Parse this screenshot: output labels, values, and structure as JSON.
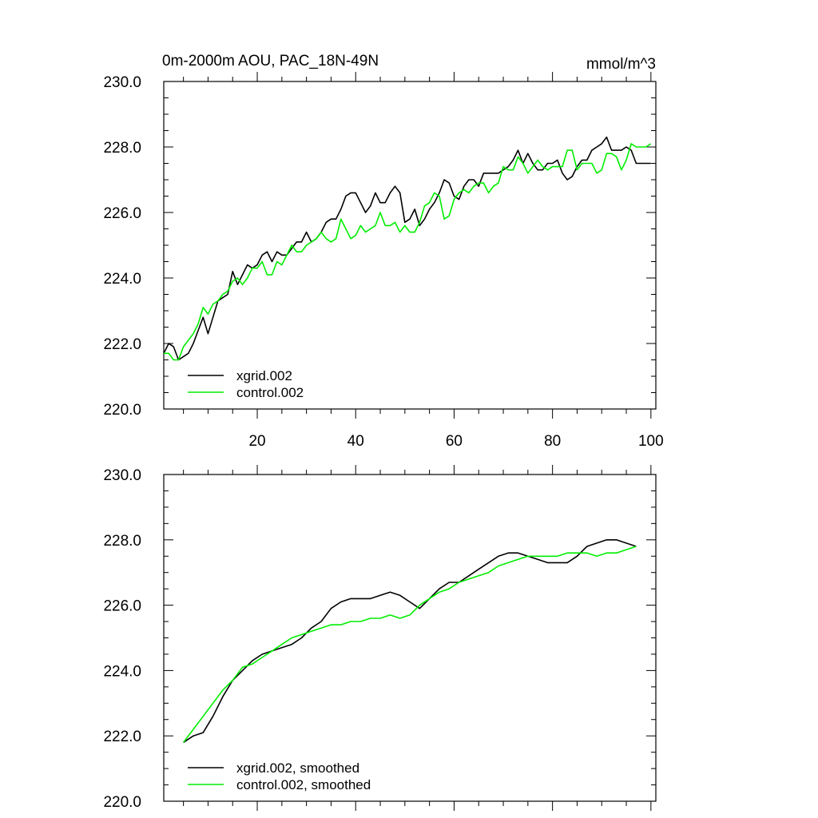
{
  "chart_data": [
    {
      "type": "line",
      "title": "0m-2000m AOU, PAC_18N-49N",
      "units": "mmol/m^3",
      "xlim": [
        1,
        101
      ],
      "ylim": [
        220,
        230
      ],
      "xticks": [
        20,
        40,
        60,
        80,
        100
      ],
      "xtick_labels": [
        "20",
        "40",
        "60",
        "80",
        "100"
      ],
      "yticks": [
        220,
        222,
        224,
        226,
        228,
        230
      ],
      "ytick_labels": [
        "220.0",
        "222.0",
        "224.0",
        "226.0",
        "228.0",
        "230.0"
      ],
      "legend_position": "bottom-left",
      "series": [
        {
          "name": "xgrid.002",
          "color": "#000000",
          "x": [
            1,
            2,
            3,
            4,
            5,
            6,
            7,
            8,
            9,
            10,
            11,
            12,
            13,
            14,
            15,
            16,
            17,
            18,
            19,
            20,
            21,
            22,
            23,
            24,
            25,
            26,
            27,
            28,
            29,
            30,
            31,
            32,
            33,
            34,
            35,
            36,
            37,
            38,
            39,
            40,
            41,
            42,
            43,
            44,
            45,
            46,
            47,
            48,
            49,
            50,
            51,
            52,
            53,
            54,
            55,
            56,
            57,
            58,
            59,
            60,
            61,
            62,
            63,
            64,
            65,
            66,
            67,
            68,
            69,
            70,
            71,
            72,
            73,
            74,
            75,
            76,
            77,
            78,
            79,
            80,
            81,
            82,
            83,
            84,
            85,
            86,
            87,
            88,
            89,
            90,
            91,
            92,
            93,
            94,
            95,
            96,
            97,
            98,
            99,
            100
          ],
          "values": [
            221.7,
            222.0,
            221.9,
            221.5,
            221.6,
            221.7,
            222.0,
            222.4,
            222.8,
            222.3,
            222.8,
            223.3,
            223.4,
            223.5,
            224.2,
            223.8,
            224.1,
            224.4,
            224.3,
            224.4,
            224.7,
            224.8,
            224.5,
            224.8,
            224.7,
            224.7,
            224.9,
            225.1,
            225.1,
            225.4,
            225.1,
            225.2,
            225.4,
            225.7,
            225.8,
            225.8,
            226.1,
            226.5,
            226.6,
            226.6,
            226.3,
            226.0,
            226.2,
            226.6,
            226.3,
            226.3,
            226.6,
            226.8,
            226.6,
            225.7,
            225.8,
            226.1,
            225.6,
            225.8,
            226.1,
            226.3,
            226.6,
            227.0,
            226.9,
            226.5,
            226.4,
            226.8,
            227.0,
            227.0,
            226.8,
            227.2,
            227.2,
            227.2,
            227.2,
            227.3,
            227.4,
            227.6,
            227.9,
            227.5,
            227.8,
            227.5,
            227.3,
            227.3,
            227.5,
            227.5,
            227.6,
            227.2,
            227.0,
            227.1,
            227.4,
            227.6,
            227.6,
            227.9,
            228.0,
            228.1,
            228.3,
            227.9,
            227.9,
            227.9,
            228.0,
            227.9,
            227.5,
            227.5,
            227.5,
            227.5
          ]
        },
        {
          "name": "control.002",
          "color": "#00ee00",
          "x": [
            1,
            2,
            3,
            4,
            5,
            6,
            7,
            8,
            9,
            10,
            11,
            12,
            13,
            14,
            15,
            16,
            17,
            18,
            19,
            20,
            21,
            22,
            23,
            24,
            25,
            26,
            27,
            28,
            29,
            30,
            31,
            32,
            33,
            34,
            35,
            36,
            37,
            38,
            39,
            40,
            41,
            42,
            43,
            44,
            45,
            46,
            47,
            48,
            49,
            50,
            51,
            52,
            53,
            54,
            55,
            56,
            57,
            58,
            59,
            60,
            61,
            62,
            63,
            64,
            65,
            66,
            67,
            68,
            69,
            70,
            71,
            72,
            73,
            74,
            75,
            76,
            77,
            78,
            79,
            80,
            81,
            82,
            83,
            84,
            85,
            86,
            87,
            88,
            89,
            90,
            91,
            92,
            93,
            94,
            95,
            96,
            97,
            98,
            99,
            100
          ],
          "values": [
            221.7,
            221.7,
            221.5,
            221.5,
            221.9,
            222.1,
            222.3,
            222.6,
            223.1,
            222.9,
            223.2,
            223.3,
            223.5,
            223.6,
            223.9,
            224.0,
            223.8,
            224.0,
            224.3,
            224.3,
            224.5,
            224.1,
            224.1,
            224.5,
            224.4,
            224.7,
            225.0,
            224.8,
            224.8,
            225.0,
            225.1,
            225.2,
            225.4,
            225.2,
            225.1,
            225.2,
            225.8,
            225.5,
            225.2,
            225.3,
            225.6,
            225.4,
            225.5,
            225.6,
            226.0,
            225.6,
            225.6,
            225.7,
            225.4,
            225.6,
            225.4,
            225.4,
            225.7,
            226.2,
            226.3,
            226.6,
            226.5,
            225.8,
            225.9,
            226.4,
            226.6,
            226.7,
            226.6,
            226.8,
            226.9,
            226.9,
            226.6,
            226.8,
            226.9,
            227.4,
            227.3,
            227.3,
            227.7,
            227.5,
            227.2,
            227.4,
            227.6,
            227.4,
            227.3,
            227.4,
            227.4,
            227.4,
            227.9,
            227.9,
            227.3,
            227.5,
            227.5,
            227.5,
            227.2,
            227.3,
            227.8,
            227.8,
            227.7,
            227.3,
            227.6,
            228.1,
            228.0,
            228.0,
            228.0,
            228.1
          ]
        }
      ],
      "legend": [
        "xgrid.002",
        "control.002"
      ]
    },
    {
      "type": "line",
      "title": "",
      "xlim": [
        1,
        101
      ],
      "ylim": [
        220,
        230
      ],
      "xticks": [
        20,
        40,
        60,
        80,
        100
      ],
      "xtick_labels": [],
      "yticks": [
        220,
        222,
        224,
        226,
        228,
        230
      ],
      "ytick_labels": [
        "220.0",
        "222.0",
        "224.0",
        "226.0",
        "228.0",
        "230.0"
      ],
      "legend_position": "bottom-left",
      "series": [
        {
          "name": "xgrid.002, smoothed",
          "color": "#000000",
          "x": [
            5,
            7,
            9,
            11,
            13,
            15,
            17,
            19,
            21,
            23,
            25,
            27,
            29,
            31,
            33,
            35,
            37,
            39,
            41,
            43,
            45,
            47,
            49,
            51,
            53,
            55,
            57,
            59,
            61,
            63,
            65,
            67,
            69,
            71,
            73,
            75,
            77,
            79,
            81,
            83,
            85,
            87,
            89,
            91,
            93,
            95,
            97
          ],
          "values": [
            221.8,
            222.0,
            222.1,
            222.6,
            223.2,
            223.7,
            224.0,
            224.3,
            224.5,
            224.6,
            224.7,
            224.8,
            225.0,
            225.3,
            225.5,
            225.9,
            226.1,
            226.2,
            226.2,
            226.2,
            226.3,
            226.4,
            226.3,
            226.1,
            225.9,
            226.2,
            226.5,
            226.7,
            226.7,
            226.9,
            227.1,
            227.3,
            227.5,
            227.6,
            227.6,
            227.5,
            227.4,
            227.3,
            227.3,
            227.3,
            227.5,
            227.8,
            227.9,
            228.0,
            228.0,
            227.9,
            227.8
          ]
        },
        {
          "name": "control.002, smoothed",
          "color": "#00ee00",
          "x": [
            5,
            7,
            9,
            11,
            13,
            15,
            17,
            19,
            21,
            23,
            25,
            27,
            29,
            31,
            33,
            35,
            37,
            39,
            41,
            43,
            45,
            47,
            49,
            51,
            53,
            55,
            57,
            59,
            61,
            63,
            65,
            67,
            69,
            71,
            73,
            75,
            77,
            79,
            81,
            83,
            85,
            87,
            89,
            91,
            93,
            95,
            97
          ],
          "values": [
            221.8,
            222.2,
            222.6,
            223.0,
            223.4,
            223.7,
            224.1,
            224.2,
            224.4,
            224.6,
            224.8,
            225.0,
            225.1,
            225.2,
            225.3,
            225.4,
            225.4,
            225.5,
            225.5,
            225.6,
            225.6,
            225.7,
            225.6,
            225.7,
            226.0,
            226.2,
            226.4,
            226.5,
            226.7,
            226.8,
            226.9,
            227.0,
            227.2,
            227.3,
            227.4,
            227.5,
            227.5,
            227.5,
            227.5,
            227.6,
            227.6,
            227.6,
            227.5,
            227.6,
            227.6,
            227.7,
            227.8
          ]
        }
      ],
      "legend": [
        "xgrid.002, smoothed",
        "control.002, smoothed"
      ]
    }
  ]
}
